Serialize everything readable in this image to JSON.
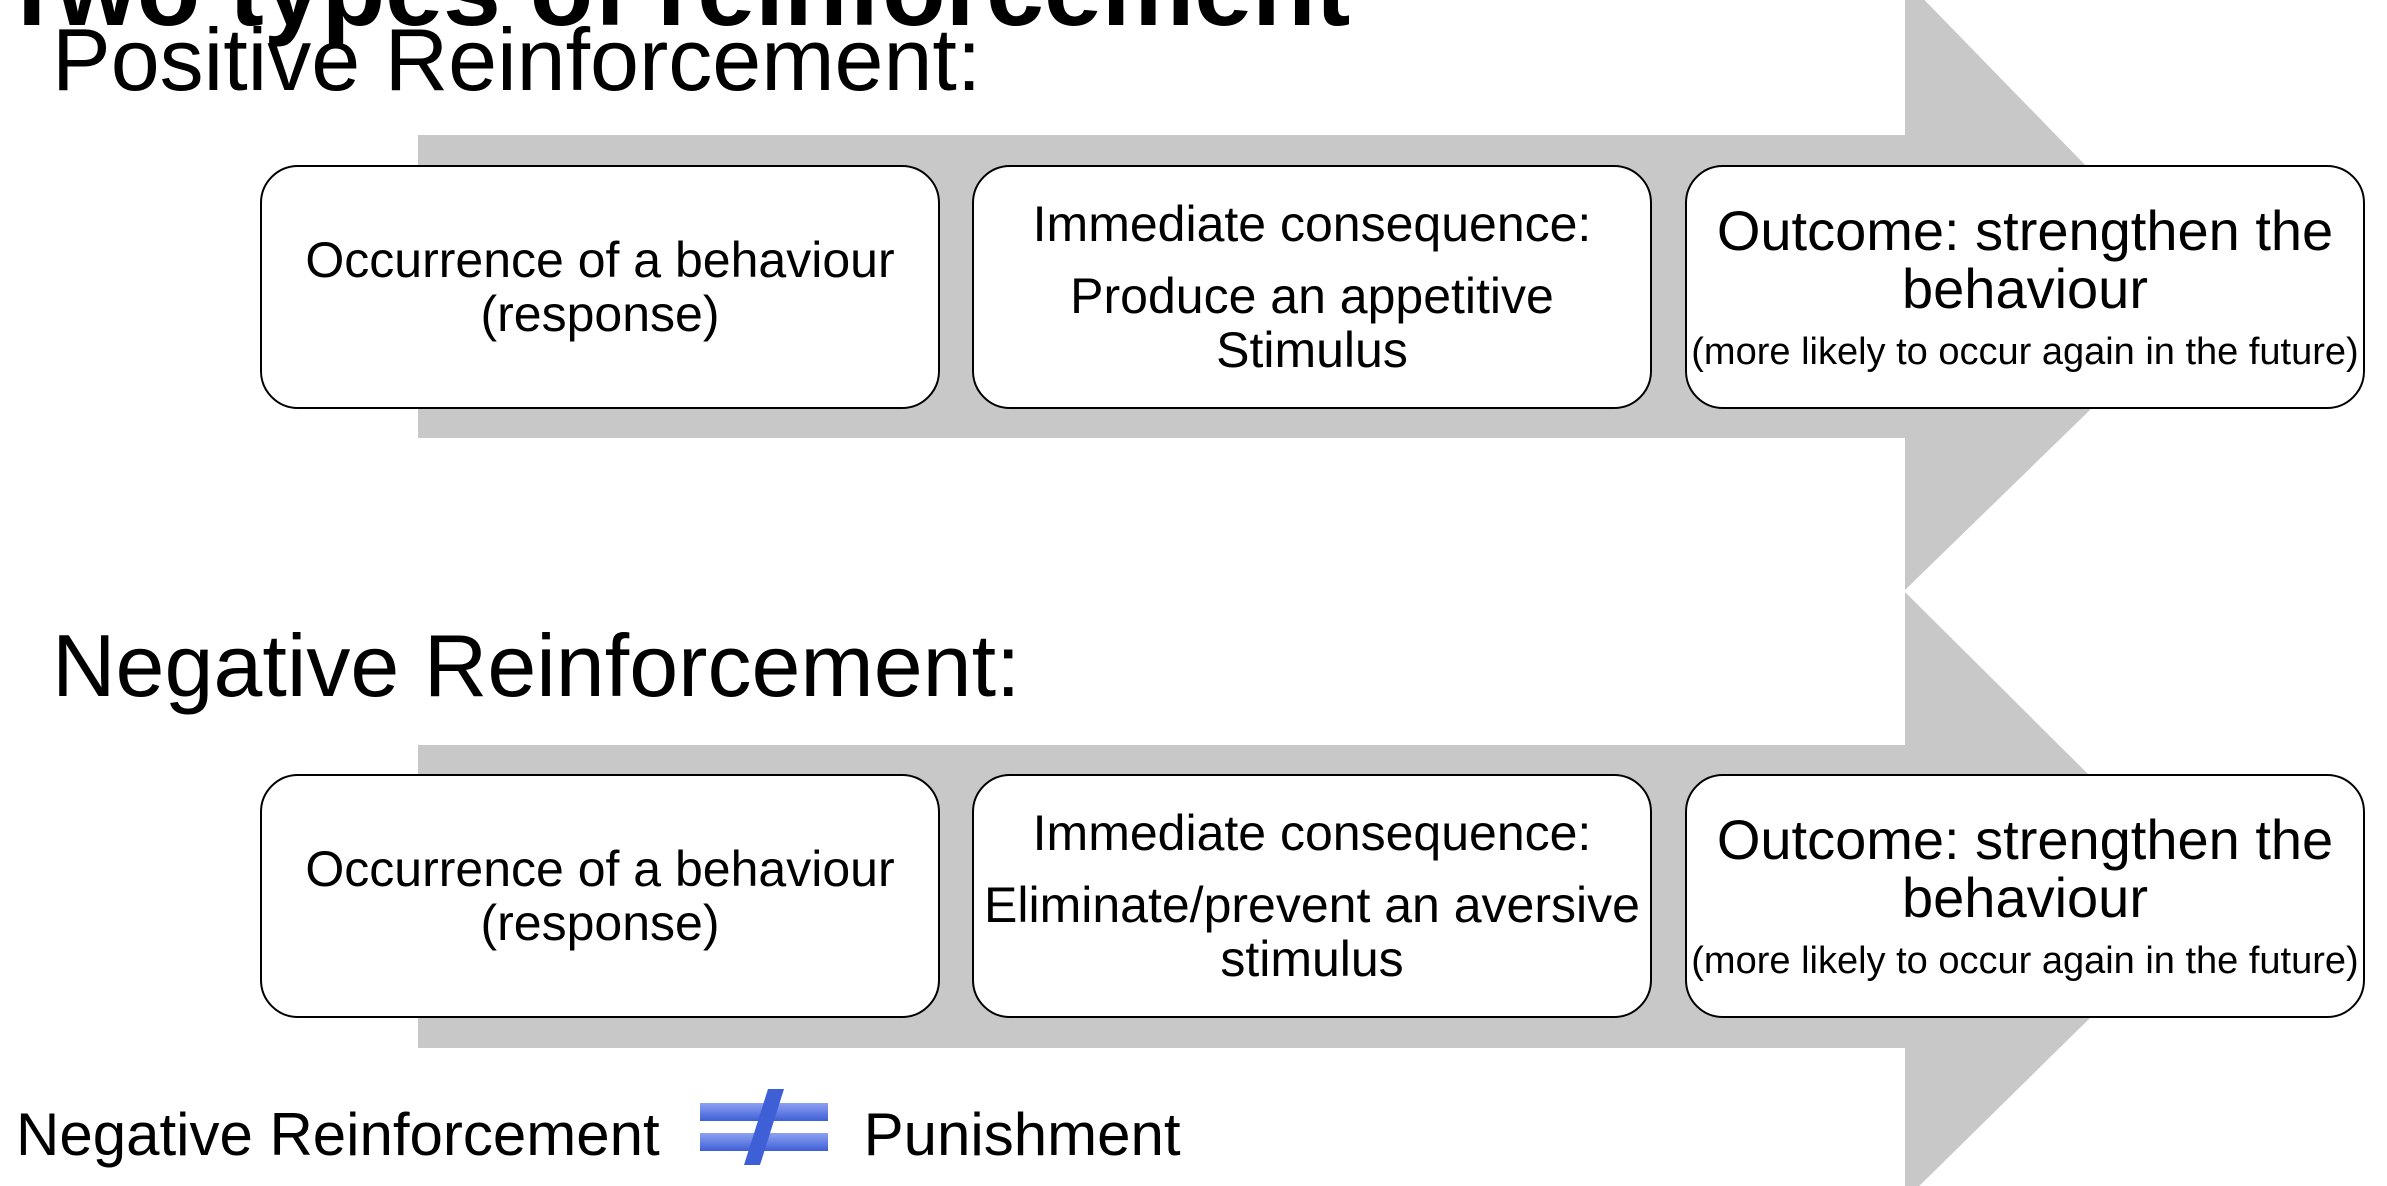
{
  "top_cut_text": "Two types of reinforcement",
  "sections": [
    {
      "title": "Positive Reinforcement:",
      "steps": [
        {
          "text": "Occurrence of a behaviour (response)"
        },
        {
          "heading": "Immediate consequence:",
          "text": "Produce an appetitive Stimulus"
        },
        {
          "heading": "Outcome: strengthen the behaviour",
          "note": "(more likely to occur again in the future)"
        }
      ]
    },
    {
      "title": "Negative Reinforcement:",
      "steps": [
        {
          "text": "Occurrence of a behaviour (response)"
        },
        {
          "heading": "Immediate consequence:",
          "text": "Eliminate/prevent an aversive stimulus"
        },
        {
          "heading": "Outcome: strengthen the behaviour",
          "note": "(more likely to occur again in the future)"
        }
      ]
    }
  ],
  "footer": {
    "left": "Negative Reinforcement",
    "symbol": "not-equal-icon",
    "right": "Punishment"
  },
  "colors": {
    "arrow": "#c8c8c8",
    "not_equal": "#4f6fe0"
  }
}
